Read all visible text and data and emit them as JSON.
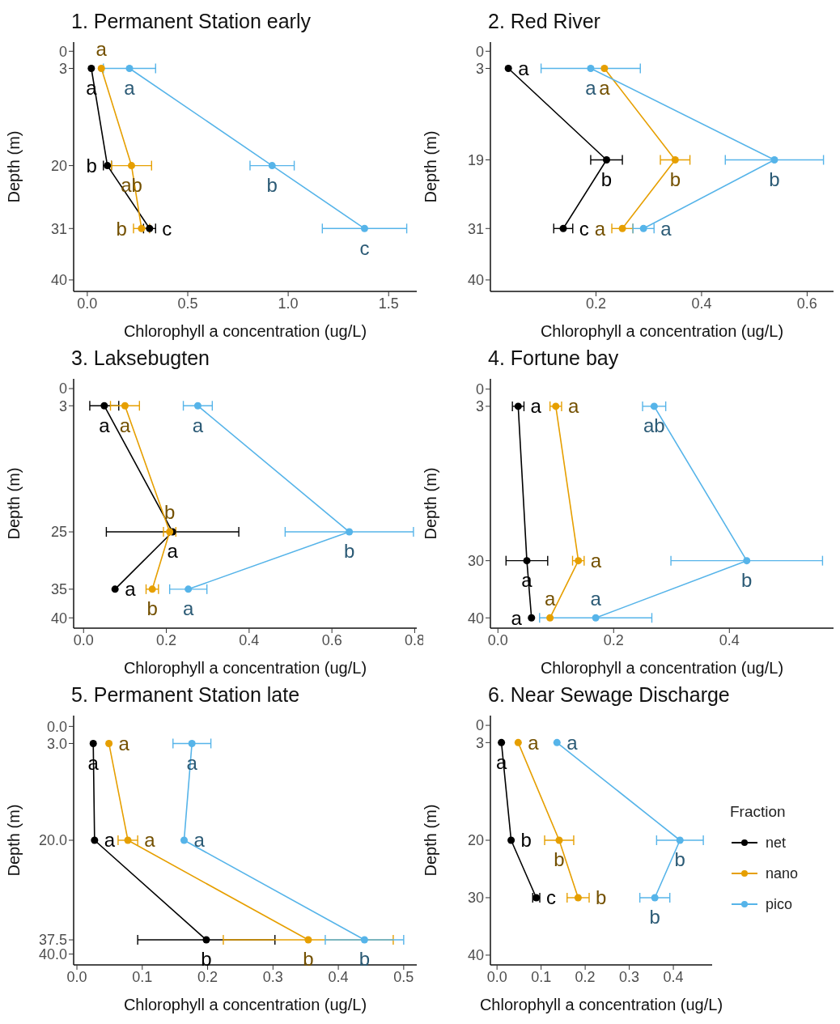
{
  "chart_data": [
    {
      "type": "line",
      "title": "1. Permanent Station early",
      "xlabel": "Chlorophyll a concentration (ug/L)",
      "ylabel": "Depth (m)",
      "xlim": [
        -0.068,
        1.64
      ],
      "ylim": [
        42,
        -1.6
      ],
      "xticks": [
        {
          "value": 0,
          "label": "0.0"
        },
        {
          "value": 0.5,
          "label": "0.5"
        },
        {
          "value": 1,
          "label": "1.0"
        },
        {
          "value": 1.5,
          "label": "1.5"
        }
      ],
      "yticks": [
        0,
        3,
        20,
        31,
        40
      ],
      "marker": "circle",
      "line_style": "solid",
      "series": [
        {
          "color": "#000000",
          "x": [
            0.02,
            0.1,
            0.31
          ],
          "values": [
            3,
            20,
            31
          ],
          "xerrors": [
            null,
            0.02,
            0.03
          ]
        },
        {
          "color": "#e69f00",
          "x": [
            0.07,
            0.22,
            0.27
          ],
          "values": [
            3,
            20,
            31
          ],
          "xerrors": [
            null,
            0.1,
            0.04
          ]
        },
        {
          "color": "#56b4e9",
          "x": [
            0.21,
            0.92,
            1.38
          ],
          "values": [
            3,
            20,
            31
          ],
          "xerrors": [
            0.13,
            0.11,
            0.21
          ]
        }
      ],
      "annotations": [
        {
          "text": "a",
          "x": 0.02,
          "y": 3
        },
        {
          "text": "b",
          "x": 0.1,
          "y": 20
        },
        {
          "text": "c",
          "x": 0.31,
          "y": 31
        },
        {
          "text": "a",
          "x": 0.07,
          "y": 3
        },
        {
          "text": "ab",
          "x": 0.22,
          "y": 20
        },
        {
          "text": "b",
          "x": 0.27,
          "y": 31
        },
        {
          "text": "a",
          "x": 0.21,
          "y": 3
        },
        {
          "text": "b",
          "x": 0.92,
          "y": 20
        },
        {
          "text": "c",
          "x": 1.38,
          "y": 31
        }
      ]
    },
    {
      "type": "line",
      "title": "2. Red River",
      "xlabel": "Chlorophyll a concentration (ug/L)",
      "ylabel": "Depth (m)",
      "xlim": [
        0,
        0.65
      ],
      "ylim": [
        42,
        -1.6
      ],
      "xticks": [
        0.2,
        0.4,
        0.6
      ],
      "yticks": [
        0,
        3,
        19,
        31,
        40
      ],
      "marker": "circle",
      "line_style": "solid",
      "series": [
        {
          "color": "#000000",
          "x": [
            0.034,
            0.22,
            0.138
          ],
          "values": [
            3,
            19,
            31
          ],
          "xerrors": [
            null,
            0.03,
            0.018
          ]
        },
        {
          "color": "#e69f00",
          "x": [
            0.216,
            0.35,
            0.25
          ],
          "values": [
            3,
            19,
            31
          ],
          "xerrors": [
            null,
            0.028,
            0.02
          ]
        },
        {
          "color": "#56b4e9",
          "x": [
            0.19,
            0.538,
            0.29
          ],
          "values": [
            3,
            19,
            31
          ],
          "xerrors": [
            0.094,
            0.093,
            0.02
          ]
        }
      ],
      "annotations": [
        {
          "text": "a",
          "x": 0.034,
          "y": 3
        },
        {
          "text": "b",
          "x": 0.22,
          "y": 19
        },
        {
          "text": "c",
          "x": 0.138,
          "y": 31
        },
        {
          "text": "a",
          "x": 0.216,
          "y": 3
        },
        {
          "text": "b",
          "x": 0.35,
          "y": 19
        },
        {
          "text": "a",
          "x": 0.25,
          "y": 31
        },
        {
          "text": "a",
          "x": 0.19,
          "y": 3
        },
        {
          "text": "b",
          "x": 0.538,
          "y": 19
        },
        {
          "text": "a",
          "x": 0.29,
          "y": 31
        }
      ]
    },
    {
      "type": "line",
      "title": "3. Laksebugten",
      "xlabel": "Chlorophyll a concentration (ug/L)",
      "ylabel": "Depth (m)",
      "xlim": [
        -0.024,
        0.805
      ],
      "ylim": [
        41.8,
        -1.7
      ],
      "xticks": [
        {
          "value": 0,
          "label": "0.0"
        },
        0.2,
        0.4,
        0.6,
        0.8
      ],
      "yticks": [
        0,
        3,
        25,
        35,
        40
      ],
      "marker": "circle",
      "line_style": "solid",
      "series": [
        {
          "color": "#000000",
          "x": [
            0.05,
            0.215,
            0.076
          ],
          "values": [
            3,
            25,
            35
          ],
          "xerrors": [
            0.035,
            0.16,
            null
          ]
        },
        {
          "color": "#e69f00",
          "x": [
            0.1,
            0.208,
            0.166
          ],
          "values": [
            3,
            25,
            35
          ],
          "xerrors": [
            0.035,
            0.015,
            0.015
          ]
        },
        {
          "color": "#56b4e9",
          "x": [
            0.276,
            0.642,
            0.253
          ],
          "values": [
            3,
            25,
            35
          ],
          "xerrors": [
            0.035,
            0.155,
            0.045
          ]
        }
      ],
      "annotations": [
        {
          "text": "a",
          "x": 0.05,
          "y": 3
        },
        {
          "text": "a",
          "x": 0.215,
          "y": 25
        },
        {
          "text": "a",
          "x": 0.076,
          "y": 35
        },
        {
          "text": "a",
          "x": 0.1,
          "y": 3
        },
        {
          "text": "b",
          "x": 0.208,
          "y": 25
        },
        {
          "text": "b",
          "x": 0.166,
          "y": 35
        },
        {
          "text": "a",
          "x": 0.276,
          "y": 3
        },
        {
          "text": "b",
          "x": 0.642,
          "y": 25
        },
        {
          "text": "a",
          "x": 0.253,
          "y": 35
        }
      ]
    },
    {
      "type": "line",
      "title": "4. Fortune bay",
      "xlabel": "Chlorophyll a concentration (ug/L)",
      "ylabel": "Depth (m)",
      "xlim": [
        -0.013,
        0.58
      ],
      "ylim": [
        41.8,
        -1.8
      ],
      "xticks": [
        {
          "value": 0,
          "label": "0.0"
        },
        0.2,
        0.4
      ],
      "yticks": [
        0,
        3,
        30,
        40
      ],
      "marker": "circle",
      "line_style": "solid",
      "series": [
        {
          "color": "#000000",
          "x": [
            0.035,
            0.05,
            0.058
          ],
          "values": [
            3,
            30,
            40
          ],
          "xerrors": [
            0.01,
            0.036,
            null
          ]
        },
        {
          "color": "#e69f00",
          "x": [
            0.1,
            0.139,
            0.09
          ],
          "values": [
            3,
            30,
            40
          ],
          "xerrors": [
            0.01,
            0.01,
            null
          ]
        },
        {
          "color": "#56b4e9",
          "x": [
            0.27,
            0.43,
            0.169
          ],
          "values": [
            3,
            30,
            40
          ],
          "xerrors": [
            0.02,
            0.131,
            0.097
          ]
        }
      ],
      "annotations": [
        {
          "text": "a",
          "x": 0.035,
          "y": 3
        },
        {
          "text": "a",
          "x": 0.05,
          "y": 30
        },
        {
          "text": "a",
          "x": 0.058,
          "y": 40
        },
        {
          "text": "a",
          "x": 0.1,
          "y": 3
        },
        {
          "text": "a",
          "x": 0.139,
          "y": 30
        },
        {
          "text": "a",
          "x": 0.09,
          "y": 40
        },
        {
          "text": "ab",
          "x": 0.27,
          "y": 3
        },
        {
          "text": "b",
          "x": 0.43,
          "y": 30
        },
        {
          "text": "a",
          "x": 0.169,
          "y": 40
        }
      ]
    },
    {
      "type": "line",
      "title": "5. Permanent Station late",
      "xlabel": "Chlorophyll a concentration (ug/L)",
      "ylabel": "Depth (m)",
      "xlim": [
        -0.005,
        0.52
      ],
      "ylim": [
        41.9,
        -1.9
      ],
      "xticks": [
        {
          "value": 0,
          "label": "0.0"
        },
        0.1,
        0.2,
        0.3,
        0.4,
        0.5
      ],
      "yticks": [
        {
          "value": 0,
          "label": "0.0"
        },
        {
          "value": 3,
          "label": "3.0"
        },
        {
          "value": 20,
          "label": "20.0"
        },
        37.5,
        {
          "value": 40,
          "label": "40.0"
        }
      ],
      "marker": "circle",
      "line_style": "solid",
      "series": [
        {
          "color": "#000000",
          "x": [
            0.025,
            0.027,
            0.198
          ],
          "values": [
            3,
            20,
            37.5
          ],
          "xerrors": [
            null,
            null,
            0.105
          ]
        },
        {
          "color": "#e69f00",
          "x": [
            0.049,
            0.078,
            0.354
          ],
          "values": [
            3,
            20,
            37.5
          ],
          "xerrors": [
            null,
            0.015,
            0.13
          ]
        },
        {
          "color": "#56b4e9",
          "x": [
            0.176,
            0.164,
            0.44
          ],
          "values": [
            3,
            20,
            37.5
          ],
          "xerrors": [
            0.029,
            null,
            0.06
          ]
        }
      ],
      "annotations": [
        {
          "text": "a",
          "x": 0.025,
          "y": 3
        },
        {
          "text": "a",
          "x": 0.027,
          "y": 20
        },
        {
          "text": "b",
          "x": 0.198,
          "y": 37.5
        },
        {
          "text": "a",
          "x": 0.049,
          "y": 3
        },
        {
          "text": "a",
          "x": 0.078,
          "y": 20
        },
        {
          "text": "b",
          "x": 0.354,
          "y": 37.5
        },
        {
          "text": "a",
          "x": 0.176,
          "y": 3
        },
        {
          "text": "a",
          "x": 0.164,
          "y": 20
        },
        {
          "text": "b",
          "x": 0.44,
          "y": 37.5
        }
      ]
    },
    {
      "type": "line",
      "title": "6. Near Sewage Discharge",
      "xlabel": "Chlorophyll a concentration (ug/L)",
      "ylabel": "Depth (m)",
      "legend_title": "Fraction",
      "legend": "right",
      "xlim": [
        -0.015,
        0.488
      ],
      "ylim": [
        41.7,
        -1.7
      ],
      "xticks": [
        {
          "value": 0,
          "label": "0.0"
        },
        0.1,
        0.2,
        0.3,
        0.4
      ],
      "yticks": [
        0,
        3,
        20,
        30,
        40
      ],
      "marker": "circle",
      "line_style": "solid",
      "series": [
        {
          "name": "net",
          "color": "#000000",
          "x": [
            0.01,
            0.032,
            0.089
          ],
          "values": [
            3,
            20,
            30
          ],
          "xerrors": [
            null,
            null,
            0.008
          ]
        },
        {
          "name": "nano",
          "color": "#e69f00",
          "x": [
            0.048,
            0.141,
            0.184
          ],
          "values": [
            3,
            20,
            30
          ],
          "xerrors": [
            null,
            0.033,
            0.025
          ]
        },
        {
          "name": "pico",
          "color": "#56b4e9",
          "x": [
            0.136,
            0.415,
            0.358
          ],
          "values": [
            3,
            20,
            30
          ],
          "xerrors": [
            null,
            0.053,
            0.034
          ]
        }
      ],
      "annotations": [
        {
          "text": "a",
          "x": 0.01,
          "y": 3
        },
        {
          "text": "b",
          "x": 0.032,
          "y": 20
        },
        {
          "text": "c",
          "x": 0.089,
          "y": 30
        },
        {
          "text": "a",
          "x": 0.048,
          "y": 3
        },
        {
          "text": "b",
          "x": 0.141,
          "y": 20
        },
        {
          "text": "b",
          "x": 0.184,
          "y": 30
        },
        {
          "text": "a",
          "x": 0.136,
          "y": 3
        },
        {
          "text": "b",
          "x": 0.415,
          "y": 20
        },
        {
          "text": "b",
          "x": 0.358,
          "y": 30
        }
      ]
    }
  ]
}
